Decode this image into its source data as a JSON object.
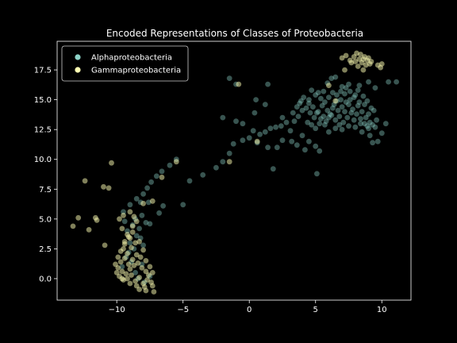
{
  "chart_data": {
    "type": "scatter",
    "title": "Encoded Representations of Classes of Proteobacteria",
    "xlabel": "",
    "ylabel": "",
    "xlim": [
      -14.5,
      12.2
    ],
    "ylim": [
      -1.8,
      19.9
    ],
    "xticks": [
      -10,
      -5,
      0,
      5,
      10
    ],
    "yticks": [
      0.0,
      2.5,
      5.0,
      7.5,
      10.0,
      12.5,
      15.0,
      17.5
    ],
    "xtick_labels": [
      "−10",
      "−5",
      "0",
      "5",
      "10"
    ],
    "ytick_labels": [
      "0.0",
      "2.5",
      "5.0",
      "7.5",
      "10.0",
      "12.5",
      "15.0",
      "17.5"
    ],
    "grid": false,
    "legend_position": "upper-left",
    "background": "#000000",
    "series": [
      {
        "name": "Alphaproteobacteria",
        "color": "#8dd3c7",
        "alpha": 0.4,
        "points": [
          [
            -9.0,
            6.2
          ],
          [
            -9.5,
            5.6
          ],
          [
            -8.5,
            6.7
          ],
          [
            -8.0,
            7.1
          ],
          [
            -7.7,
            7.6
          ],
          [
            -7.4,
            8.1
          ],
          [
            -7.0,
            8.6
          ],
          [
            -6.6,
            9.0
          ],
          [
            -6.0,
            9.5
          ],
          [
            -5.5,
            10.0
          ],
          [
            -8.2,
            6.4
          ],
          [
            -7.6,
            6.4
          ],
          [
            -7.8,
            4.7
          ],
          [
            -8.1,
            5.3
          ],
          [
            -6.5,
            6.1
          ],
          [
            -6.8,
            5.5
          ],
          [
            -5.0,
            6.2
          ],
          [
            -4.5,
            8.2
          ],
          [
            -3.5,
            8.7
          ],
          [
            -2.5,
            9.3
          ],
          [
            -2.0,
            9.8
          ],
          [
            -1.5,
            10.5
          ],
          [
            -1.2,
            11.3
          ],
          [
            -0.5,
            11.6
          ],
          [
            0.0,
            11.8
          ],
          [
            0.3,
            12.4
          ],
          [
            0.8,
            12.1
          ],
          [
            1.2,
            12.3
          ],
          [
            1.6,
            12.6
          ],
          [
            2.0,
            12.7
          ],
          [
            2.4,
            12.8
          ],
          [
            2.8,
            13.1
          ],
          [
            3.1,
            12.4
          ],
          [
            1.8,
            9.2
          ],
          [
            2.1,
            11.0
          ],
          [
            2.5,
            11.6
          ],
          [
            0.6,
            11.4
          ],
          [
            1.4,
            11.0
          ],
          [
            -2.0,
            13.5
          ],
          [
            -1.0,
            13.2
          ],
          [
            -0.5,
            13.0
          ],
          [
            0.4,
            13.9
          ],
          [
            1.2,
            14.6
          ],
          [
            1.4,
            16.3
          ],
          [
            -1.5,
            16.8
          ],
          [
            -1.0,
            16.3
          ],
          [
            0.5,
            15.0
          ],
          [
            2.5,
            13.5
          ],
          [
            3.2,
            11.5
          ],
          [
            3.6,
            11.2
          ],
          [
            4.0,
            12.0
          ],
          [
            4.2,
            10.8
          ],
          [
            4.5,
            11.5
          ],
          [
            5.0,
            11.1
          ],
          [
            5.3,
            10.7
          ],
          [
            5.1,
            8.8
          ],
          [
            4.7,
            15.8
          ],
          [
            5.2,
            15.6
          ],
          [
            5.6,
            15.7
          ],
          [
            5.9,
            16.4
          ],
          [
            6.2,
            16.8
          ],
          [
            6.5,
            16.9
          ],
          [
            7.0,
            16.1
          ],
          [
            7.5,
            16.3
          ],
          [
            8.3,
            16.2
          ],
          [
            9.0,
            16.5
          ],
          [
            9.5,
            16.0
          ],
          [
            10.5,
            16.5
          ],
          [
            11.1,
            16.5
          ],
          [
            10.3,
            13.0
          ],
          [
            10.0,
            12.2
          ],
          [
            9.7,
            11.5
          ],
          [
            9.3,
            11.4
          ],
          [
            9.1,
            12.0
          ],
          [
            8.8,
            13.5
          ],
          [
            8.5,
            14.0
          ],
          [
            8.2,
            14.5
          ],
          [
            7.9,
            15.2
          ],
          [
            7.6,
            15.7
          ],
          [
            7.3,
            14.8
          ],
          [
            7.0,
            14.4
          ],
          [
            6.7,
            14.1
          ],
          [
            6.4,
            14.6
          ],
          [
            6.1,
            13.8
          ],
          [
            5.8,
            13.2
          ],
          [
            5.5,
            14.5
          ],
          [
            5.2,
            14.0
          ],
          [
            4.9,
            13.5
          ],
          [
            4.6,
            13.9
          ],
          [
            4.3,
            14.3
          ],
          [
            4.0,
            14.1
          ],
          [
            3.7,
            13.6
          ],
          [
            3.4,
            13.2
          ],
          [
            3.8,
            14.7
          ],
          [
            4.1,
            15.2
          ],
          [
            4.5,
            15.0
          ],
          [
            5.0,
            15.4
          ],
          [
            5.4,
            15.1
          ],
          [
            5.7,
            14.8
          ],
          [
            6.0,
            15.2
          ],
          [
            6.3,
            15.6
          ],
          [
            6.6,
            15.4
          ],
          [
            6.9,
            15.0
          ],
          [
            7.2,
            15.5
          ],
          [
            7.5,
            14.6
          ],
          [
            7.8,
            14.2
          ],
          [
            8.1,
            13.8
          ],
          [
            8.4,
            13.4
          ],
          [
            8.7,
            13.0
          ],
          [
            9.0,
            12.6
          ],
          [
            9.3,
            12.9
          ],
          [
            9.6,
            13.3
          ],
          [
            9.2,
            14.3
          ],
          [
            8.9,
            14.9
          ],
          [
            8.6,
            15.3
          ],
          [
            8.3,
            14.8
          ],
          [
            8.0,
            15.4
          ],
          [
            7.7,
            13.9
          ],
          [
            7.4,
            13.5
          ],
          [
            7.1,
            13.1
          ],
          [
            6.8,
            12.9
          ],
          [
            6.5,
            13.3
          ],
          [
            6.2,
            13.7
          ],
          [
            5.9,
            14.1
          ],
          [
            5.6,
            13.6
          ],
          [
            5.3,
            13.0
          ],
          [
            5.0,
            12.6
          ],
          [
            4.7,
            12.9
          ],
          [
            4.4,
            13.1
          ],
          [
            6.0,
            12.3
          ],
          [
            6.5,
            12.6
          ],
          [
            7.0,
            12.5
          ],
          [
            7.5,
            12.8
          ],
          [
            8.0,
            12.7
          ],
          [
            8.5,
            12.3
          ],
          [
            9.0,
            13.8
          ],
          [
            9.4,
            14.1
          ],
          [
            8.7,
            14.6
          ],
          [
            8.2,
            15.8
          ],
          [
            7.6,
            15.0
          ],
          [
            7.3,
            16.0
          ],
          [
            6.9,
            15.7
          ],
          [
            6.6,
            14.9
          ],
          [
            6.3,
            14.3
          ],
          [
            6.0,
            13.5
          ],
          [
            5.7,
            12.9
          ],
          [
            5.4,
            13.4
          ],
          [
            5.1,
            13.9
          ],
          [
            4.8,
            14.4
          ],
          [
            4.5,
            14.7
          ],
          [
            3.9,
            14.9
          ],
          [
            3.6,
            14.4
          ],
          [
            3.3,
            13.9
          ],
          [
            6.8,
            13.6
          ],
          [
            7.2,
            14.0
          ],
          [
            7.9,
            13.3
          ],
          [
            8.4,
            13.0
          ],
          [
            8.9,
            12.8
          ],
          [
            9.1,
            13.1
          ],
          [
            9.5,
            12.7
          ],
          [
            -9.2,
            4.0
          ],
          [
            -8.8,
            4.5
          ],
          [
            -9.0,
            3.0
          ],
          [
            -8.7,
            2.5
          ],
          [
            -9.3,
            1.8
          ],
          [
            -8.5,
            3.6
          ],
          [
            -8.3,
            4.2
          ],
          [
            -9.1,
            2.2
          ],
          [
            -8.9,
            1.4
          ],
          [
            -9.6,
            1.0
          ],
          [
            -8.6,
            0.5
          ],
          [
            -8.1,
            1.2
          ],
          [
            -8.4,
            0.0
          ],
          [
            -7.9,
            -0.3
          ],
          [
            -7.5,
            0.2
          ],
          [
            -8.0,
            2.8
          ],
          [
            -8.2,
            3.4
          ],
          [
            -9.4,
            4.8
          ],
          [
            -8.6,
            5.0
          ],
          [
            -7.5,
            4.6
          ]
        ]
      },
      {
        "name": "Gammaproteobacteria",
        "color": "#ffffb3",
        "alpha": 0.5,
        "points": [
          [
            -13.3,
            4.4
          ],
          [
            -12.9,
            5.1
          ],
          [
            -12.4,
            8.2
          ],
          [
            -12.1,
            4.1
          ],
          [
            -11.6,
            5.1
          ],
          [
            -11.5,
            4.9
          ],
          [
            -11.0,
            7.7
          ],
          [
            -10.6,
            7.6
          ],
          [
            -10.9,
            2.8
          ],
          [
            -10.4,
            9.7
          ],
          [
            -9.8,
            5.0
          ],
          [
            -9.5,
            5.3
          ],
          [
            -9.6,
            4.2
          ],
          [
            -9.2,
            3.7
          ],
          [
            -9.4,
            3.1
          ],
          [
            -9.0,
            3.4
          ],
          [
            -8.8,
            3.9
          ],
          [
            -9.5,
            2.5
          ],
          [
            -9.2,
            2.1
          ],
          [
            -8.9,
            2.6
          ],
          [
            -8.6,
            3.0
          ],
          [
            -9.7,
            1.4
          ],
          [
            -9.4,
            1.7
          ],
          [
            -9.1,
            1.2
          ],
          [
            -8.8,
            1.6
          ],
          [
            -8.5,
            2.0
          ],
          [
            -8.2,
            1.8
          ],
          [
            -9.9,
            0.9
          ],
          [
            -9.6,
            0.6
          ],
          [
            -9.3,
            0.4
          ],
          [
            -9.0,
            0.8
          ],
          [
            -8.7,
            1.1
          ],
          [
            -8.4,
            1.3
          ],
          [
            -8.1,
            0.9
          ],
          [
            -7.8,
            0.6
          ],
          [
            -9.8,
            0.2
          ],
          [
            -9.5,
            -0.1
          ],
          [
            -9.2,
            0.0
          ],
          [
            -8.9,
            0.3
          ],
          [
            -8.6,
            -0.2
          ],
          [
            -8.3,
            0.1
          ],
          [
            -8.0,
            -0.4
          ],
          [
            -7.7,
            -0.1
          ],
          [
            -7.4,
            -0.3
          ],
          [
            -7.6,
            0.3
          ],
          [
            -7.3,
            -0.6
          ],
          [
            -7.9,
            -0.7
          ],
          [
            -8.5,
            -0.6
          ],
          [
            -9.0,
            -0.4
          ],
          [
            -9.6,
            0.0
          ],
          [
            -10.0,
            0.5
          ],
          [
            -10.1,
            1.2
          ],
          [
            -9.9,
            1.8
          ],
          [
            -9.7,
            2.3
          ],
          [
            -9.4,
            2.9
          ],
          [
            -9.1,
            3.5
          ],
          [
            -8.8,
            4.4
          ],
          [
            -8.5,
            4.8
          ],
          [
            -8.3,
            3.1
          ],
          [
            -8.0,
            2.4
          ],
          [
            -7.8,
            1.5
          ],
          [
            -7.5,
            1.0
          ],
          [
            -7.3,
            0.5
          ],
          [
            -7.2,
            -1.1
          ],
          [
            -7.8,
            -1.0
          ],
          [
            -8.3,
            -0.9
          ],
          [
            -8.7,
            5.2
          ],
          [
            -9.0,
            5.6
          ],
          [
            -8.0,
            6.3
          ],
          [
            -7.3,
            6.5
          ],
          [
            -6.6,
            8.5
          ],
          [
            -5.5,
            9.8
          ],
          [
            -1.5,
            9.8
          ],
          [
            0.6,
            11.5
          ],
          [
            -0.8,
            16.3
          ],
          [
            6.5,
            14.9
          ],
          [
            6.0,
            16.2
          ],
          [
            7.0,
            18.5
          ],
          [
            7.3,
            18.7
          ],
          [
            7.6,
            18.3
          ],
          [
            7.9,
            18.6
          ],
          [
            8.1,
            18.9
          ],
          [
            8.3,
            18.4
          ],
          [
            8.5,
            18.1
          ],
          [
            8.7,
            18.6
          ],
          [
            8.9,
            18.3
          ],
          [
            9.1,
            18.0
          ],
          [
            8.0,
            18.2
          ],
          [
            8.4,
            18.8
          ],
          [
            8.8,
            17.9
          ],
          [
            9.0,
            18.5
          ],
          [
            9.2,
            18.2
          ],
          [
            7.7,
            18.1
          ],
          [
            8.6,
            18.4
          ],
          [
            9.7,
            17.9
          ],
          [
            10.0,
            18.0
          ],
          [
            9.9,
            17.7
          ],
          [
            7.2,
            17.5
          ],
          [
            8.2,
            17.8
          ],
          [
            8.6,
            17.5
          ]
        ]
      }
    ]
  }
}
